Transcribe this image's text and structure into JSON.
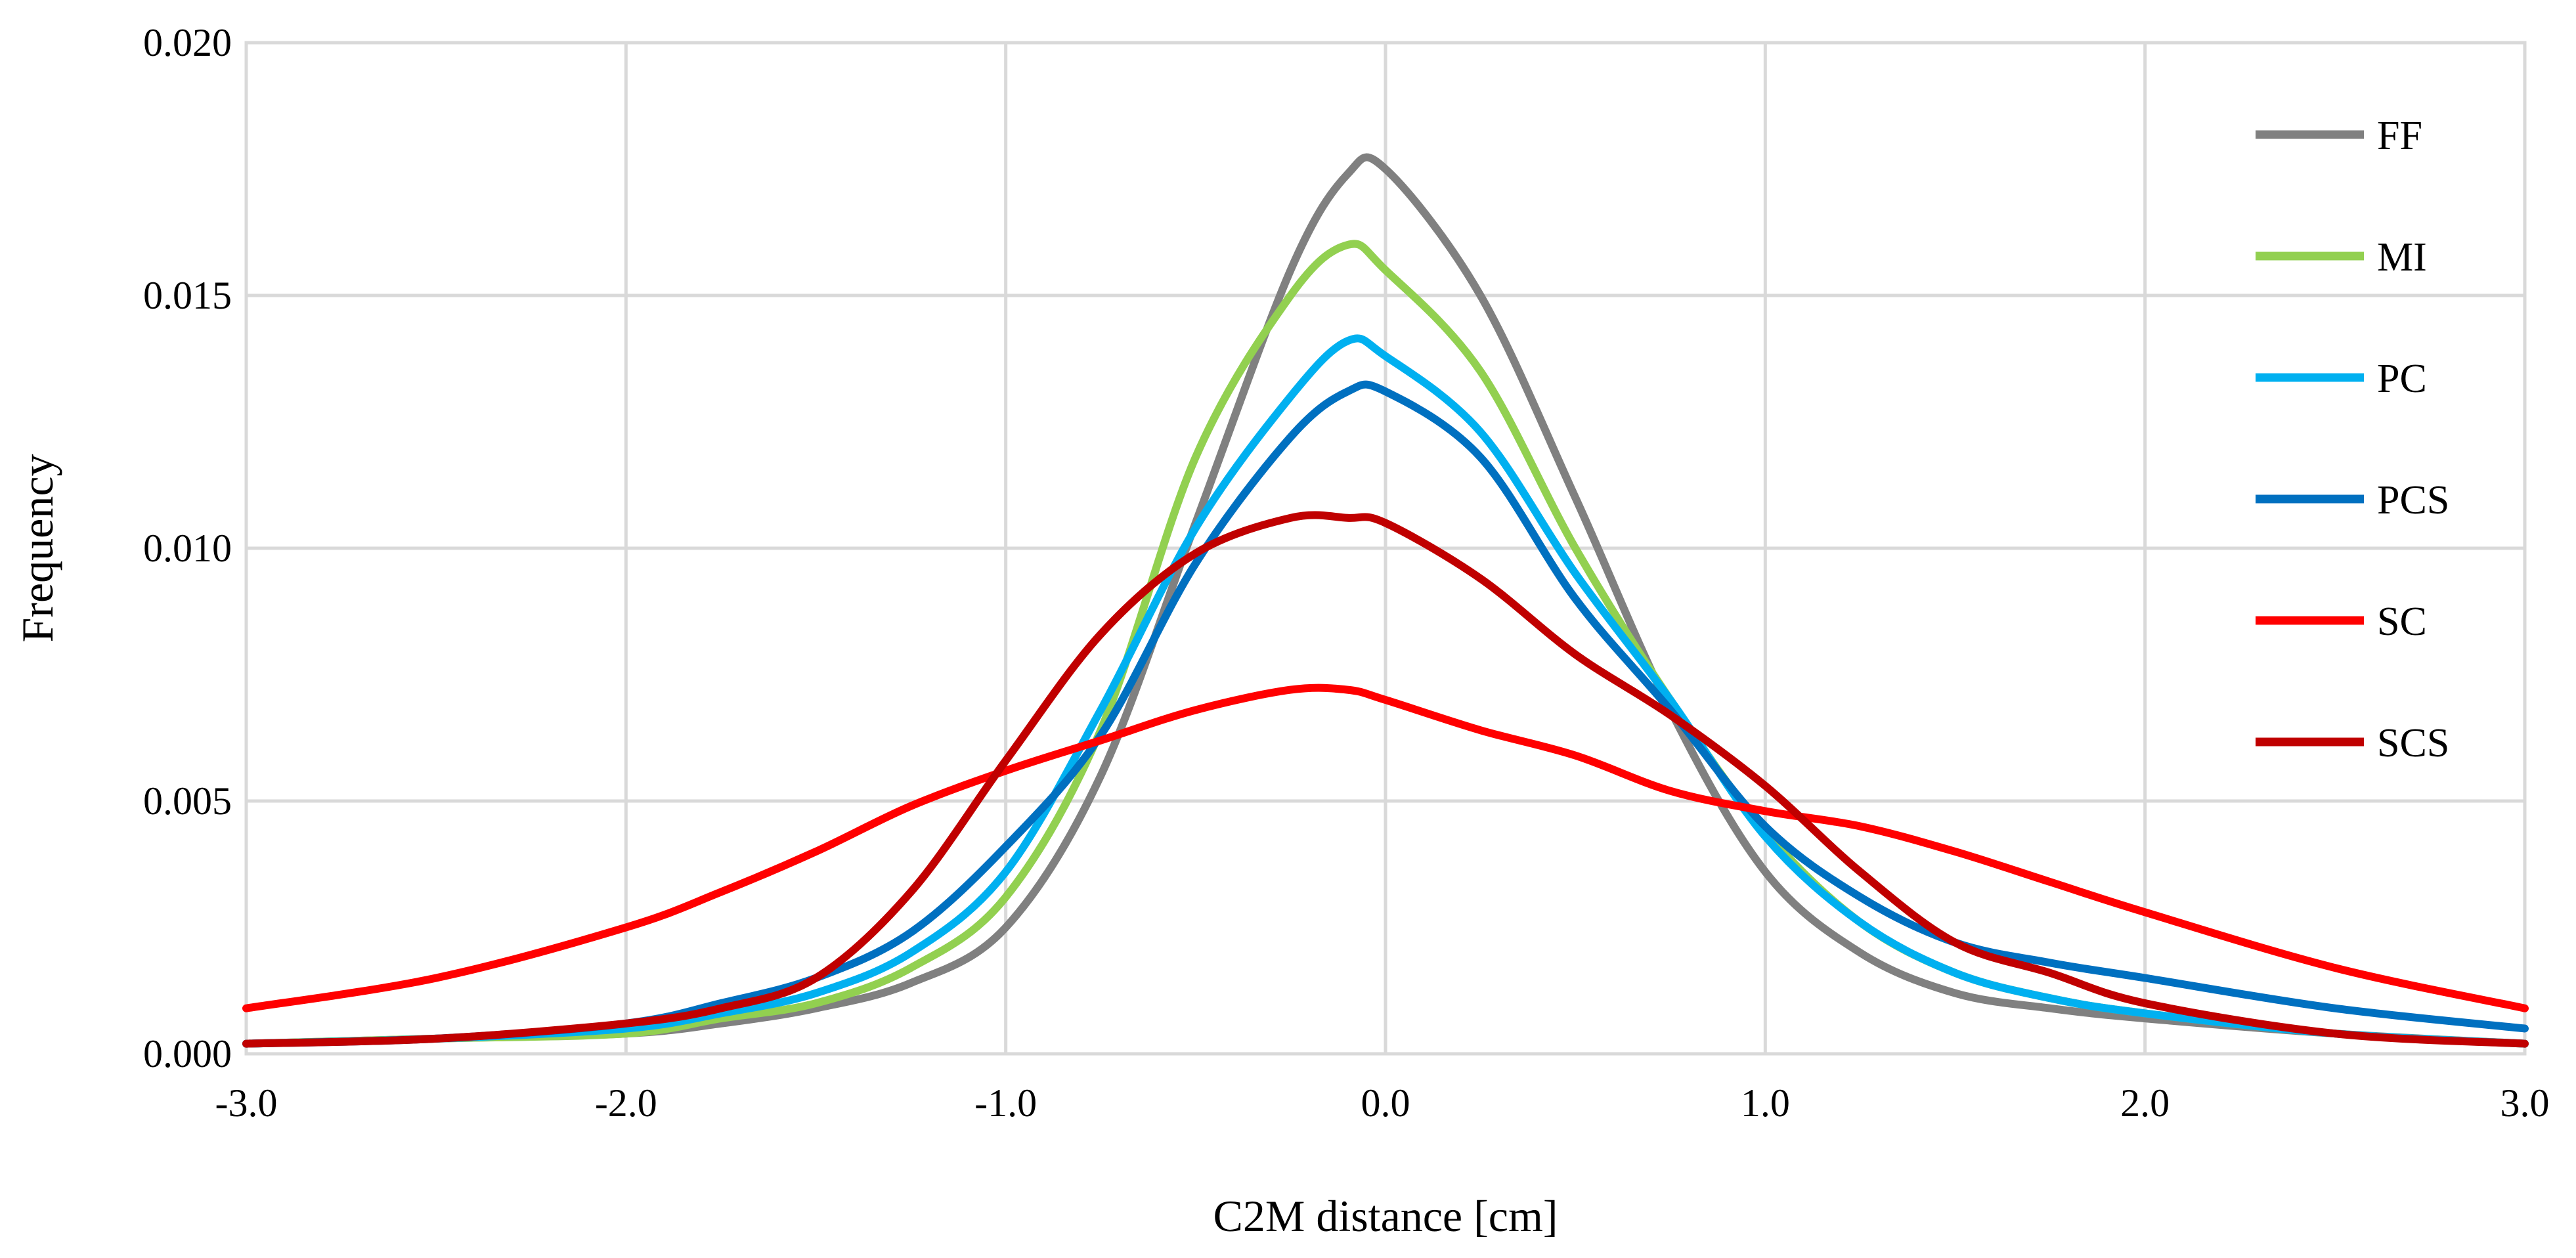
{
  "chart_data": {
    "type": "line",
    "title": "",
    "xlabel": "C2M distance [cm]",
    "ylabel": "Frequency",
    "xlim": [
      -3.0,
      3.0
    ],
    "ylim": [
      0.0,
      0.02
    ],
    "grid": true,
    "legend_position": "top-right",
    "x_ticks": [
      "-3.0",
      "-2.0",
      "-1.0",
      "0.0",
      "1.0",
      "2.0",
      "3.0"
    ],
    "y_ticks": [
      "0.000",
      "0.005",
      "0.010",
      "0.015",
      "0.020"
    ],
    "x": [
      -3.0,
      -2.5,
      -2.0,
      -1.75,
      -1.5,
      -1.25,
      -1.0,
      -0.75,
      -0.5,
      -0.25,
      -0.1,
      0.0,
      0.25,
      0.5,
      0.75,
      1.0,
      1.25,
      1.5,
      1.75,
      2.0,
      2.5,
      3.0
    ],
    "series": [
      {
        "name": "FF",
        "color": "#808080",
        "values": [
          0.0002,
          0.0003,
          0.0004,
          0.0006,
          0.0009,
          0.0014,
          0.0025,
          0.0055,
          0.0105,
          0.0155,
          0.0174,
          0.0175,
          0.015,
          0.011,
          0.0068,
          0.0036,
          0.002,
          0.0012,
          0.0009,
          0.0007,
          0.0004,
          0.0002
        ]
      },
      {
        "name": "MI",
        "color": "#92D050",
        "values": [
          0.0002,
          0.0003,
          0.0004,
          0.0007,
          0.001,
          0.0017,
          0.0031,
          0.0064,
          0.0118,
          0.015,
          0.016,
          0.0155,
          0.0135,
          0.01,
          0.007,
          0.0044,
          0.0026,
          0.0016,
          0.0011,
          0.0008,
          0.0004,
          0.0002
        ]
      },
      {
        "name": "PC",
        "color": "#00B0F0",
        "values": [
          0.0002,
          0.0003,
          0.0005,
          0.0008,
          0.0012,
          0.002,
          0.0036,
          0.0068,
          0.0104,
          0.013,
          0.0141,
          0.0138,
          0.0123,
          0.0095,
          0.007,
          0.0043,
          0.0026,
          0.0016,
          0.0011,
          0.0008,
          0.0004,
          0.0002
        ]
      },
      {
        "name": "PCS",
        "color": "#0070C0",
        "values": [
          0.0002,
          0.0003,
          0.0006,
          0.001,
          0.0015,
          0.0024,
          0.0041,
          0.0063,
          0.0097,
          0.0122,
          0.0131,
          0.0131,
          0.0118,
          0.009,
          0.0068,
          0.0045,
          0.0031,
          0.0022,
          0.0018,
          0.0015,
          0.0009,
          0.0005
        ]
      },
      {
        "name": "SC",
        "color": "#FF0000",
        "values": [
          0.0009,
          0.0015,
          0.0025,
          0.0032,
          0.004,
          0.0049,
          0.0056,
          0.0062,
          0.0068,
          0.0072,
          0.0072,
          0.007,
          0.0064,
          0.0059,
          0.0052,
          0.0048,
          0.0045,
          0.004,
          0.0034,
          0.0028,
          0.0017,
          0.0009
        ]
      },
      {
        "name": "SCS",
        "color": "#C00000",
        "values": [
          0.0002,
          0.0003,
          0.0006,
          0.0009,
          0.0015,
          0.0032,
          0.0058,
          0.0083,
          0.0099,
          0.0106,
          0.0106,
          0.0105,
          0.0094,
          0.0079,
          0.0067,
          0.0053,
          0.0036,
          0.0022,
          0.0016,
          0.001,
          0.0004,
          0.0002
        ]
      }
    ]
  }
}
